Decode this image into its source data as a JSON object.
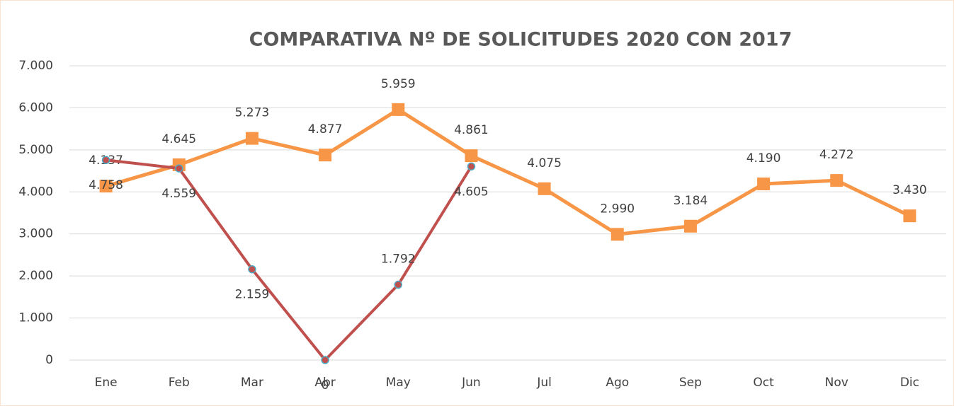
{
  "chart_data": {
    "type": "line",
    "title": "COMPARATIVA Nº DE SOLICITUDES 2020 CON 2017",
    "categories": [
      "Ene",
      "Feb",
      "Mar",
      "Abr",
      "May",
      "Jun",
      "Jul",
      "Ago",
      "Sep",
      "Oct",
      "Nov",
      "Dic"
    ],
    "series": [
      {
        "color": "#f79646",
        "marker": "square",
        "values": [
          4137,
          4645,
          5273,
          4877,
          5959,
          4861,
          4075,
          2990,
          3184,
          4190,
          4272,
          3430
        ],
        "value_labels": [
          "4.137",
          "4.645",
          "5.273",
          "4.877",
          "5.959",
          "4.861",
          "4.075",
          "2.990",
          "3.184",
          "4.190",
          "4.272",
          "3.430"
        ]
      },
      {
        "color": "#c0504d",
        "marker": "circle",
        "values": [
          4758,
          4559,
          2159,
          0,
          1792,
          4605,
          null,
          null,
          null,
          null,
          null,
          null
        ],
        "value_labels": [
          "4.758",
          "4.559",
          "2.159",
          "0",
          "1.792",
          "4.605",
          null,
          null,
          null,
          null,
          null,
          null
        ]
      }
    ],
    "ylim": [
      0,
      7000
    ],
    "yticks": [
      0,
      {
        "value": 1000,
        "label": "1.000"
      },
      {
        "value": 2000,
        "label": "2.000"
      },
      {
        "value": 3000,
        "label": "3.000"
      },
      {
        "value": 4000,
        "label": "4.000"
      },
      {
        "value": 5000,
        "label": "5.000"
      },
      {
        "value": 6000,
        "label": "6.000"
      },
      {
        "value": 7000,
        "label": "7.000"
      }
    ],
    "grid": true
  }
}
